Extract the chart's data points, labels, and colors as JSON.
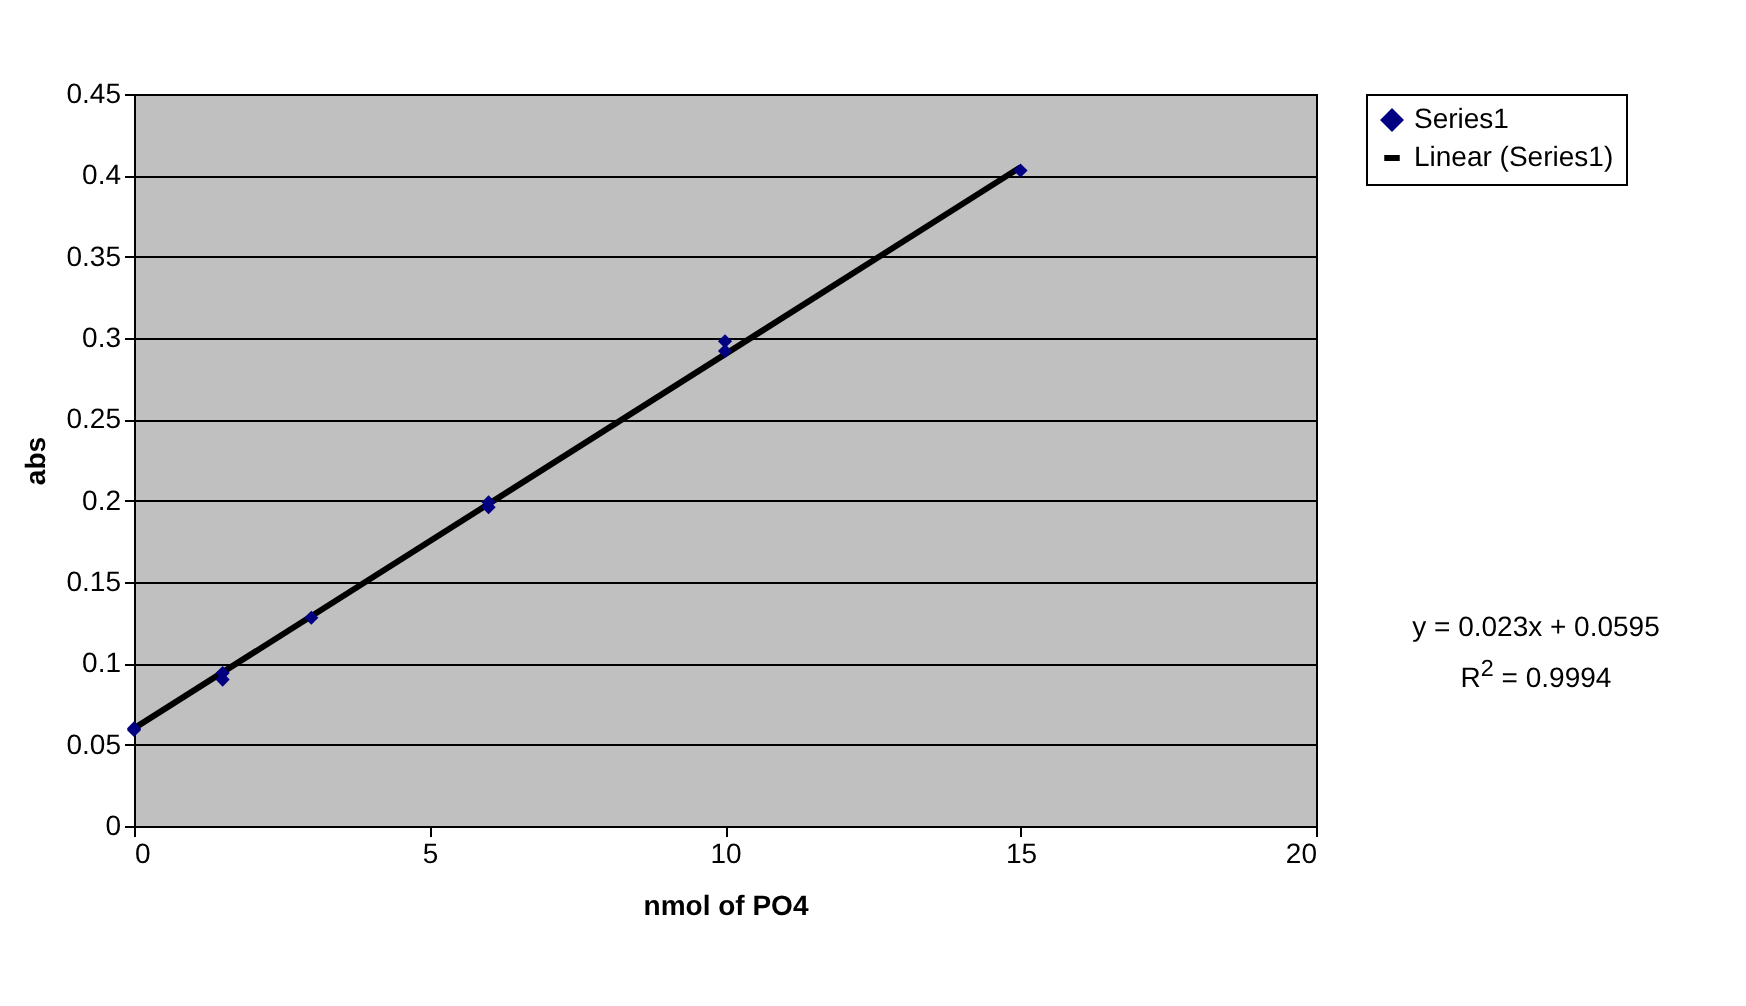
{
  "chart_data": {
    "type": "scatter",
    "xlabel": "nmol of PO4",
    "ylabel": "abs",
    "xlim": [
      0,
      20
    ],
    "xticks": [
      0,
      5,
      10,
      15,
      20
    ],
    "ylim": [
      0,
      0.45
    ],
    "yticks": [
      0,
      0.05,
      0.1,
      0.15,
      0.2,
      0.25,
      0.3,
      0.35,
      0.4,
      0.45
    ],
    "grid": "y",
    "legend": "right",
    "series": [
      {
        "name": "Series1",
        "color": "#000080",
        "marker": "diamond",
        "x": [
          0,
          0,
          1.5,
          1.5,
          3,
          6,
          6,
          10,
          10,
          15
        ],
        "values": [
          0.06,
          0.059,
          0.094,
          0.09,
          0.128,
          0.199,
          0.196,
          0.298,
          0.292,
          0.403
        ]
      },
      {
        "type": "line",
        "name": "Linear (Series1)",
        "color": "#000000",
        "marker": "none",
        "x": [
          0,
          15
        ],
        "values": [
          0.06,
          0.405
        ]
      }
    ],
    "annotations": [
      "y = 0.023x + 0.0595",
      "R$^{2}$ = 0.9994"
    ]
  }
}
